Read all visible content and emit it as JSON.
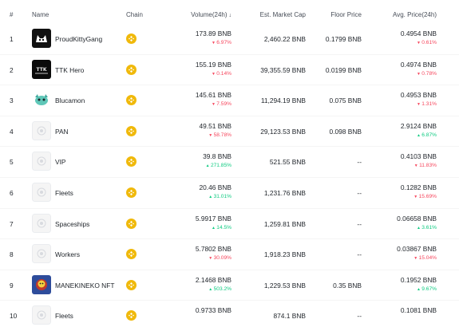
{
  "columns": {
    "rank": "#",
    "name": "Name",
    "chain": "Chain",
    "volume": "Volume(24h)",
    "market_cap": "Est. Market Cap",
    "floor": "Floor Price",
    "avg": "Avg. Price(24h)"
  },
  "sort_icon": "arrow-down-icon",
  "colors": {
    "up": "#0ecb81",
    "down": "#f6465d",
    "chain": "#f0b90b"
  },
  "rows": [
    {
      "rank": "1",
      "name": "ProudKittyGang",
      "logo": "kitty-logo-icon",
      "volume": "173.89 BNB",
      "volume_change": "6.97%",
      "volume_dir": "down",
      "market_cap": "2,460.22 BNB",
      "floor": "0.1799 BNB",
      "avg": "0.4954 BNB",
      "avg_change": "0.61%",
      "avg_dir": "down"
    },
    {
      "rank": "2",
      "name": "TTK Hero",
      "logo": "ttk-logo-icon",
      "volume": "155.19 BNB",
      "volume_change": "0.14%",
      "volume_dir": "down",
      "market_cap": "39,355.59 BNB",
      "floor": "0.0199 BNB",
      "avg": "0.4974 BNB",
      "avg_change": "0.78%",
      "avg_dir": "down"
    },
    {
      "rank": "3",
      "name": "Blucamon",
      "logo": "blucamon-logo-icon",
      "volume": "145.61 BNB",
      "volume_change": "7.59%",
      "volume_dir": "down",
      "market_cap": "11,294.19 BNB",
      "floor": "0.075 BNB",
      "avg": "0.4953 BNB",
      "avg_change": "1.31%",
      "avg_dir": "down"
    },
    {
      "rank": "4",
      "name": "PAN",
      "logo": "placeholder-logo-icon",
      "volume": "49.51 BNB",
      "volume_change": "58.78%",
      "volume_dir": "down",
      "market_cap": "29,123.53 BNB",
      "floor": "0.098 BNB",
      "avg": "2.9124 BNB",
      "avg_change": "6.87%",
      "avg_dir": "up"
    },
    {
      "rank": "5",
      "name": "VIP",
      "logo": "placeholder-logo-icon",
      "volume": "39.8 BNB",
      "volume_change": "271.85%",
      "volume_dir": "up",
      "market_cap": "521.55 BNB",
      "floor": "--",
      "avg": "0.4103 BNB",
      "avg_change": "11.83%",
      "avg_dir": "down"
    },
    {
      "rank": "6",
      "name": "Fleets",
      "logo": "placeholder-logo-icon",
      "volume": "20.46 BNB",
      "volume_change": "31.01%",
      "volume_dir": "up",
      "market_cap": "1,231.76 BNB",
      "floor": "--",
      "avg": "0.1282 BNB",
      "avg_change": "15.69%",
      "avg_dir": "down"
    },
    {
      "rank": "7",
      "name": "Spaceships",
      "logo": "placeholder-logo-icon",
      "volume": "5.9917 BNB",
      "volume_change": "14.5%",
      "volume_dir": "up",
      "market_cap": "1,259.81 BNB",
      "floor": "--",
      "avg": "0.06658 BNB",
      "avg_change": "3.61%",
      "avg_dir": "up"
    },
    {
      "rank": "8",
      "name": "Workers",
      "logo": "placeholder-logo-icon",
      "volume": "5.7802 BNB",
      "volume_change": "30.09%",
      "volume_dir": "down",
      "market_cap": "1,918.23 BNB",
      "floor": "--",
      "avg": "0.03867 BNB",
      "avg_change": "15.04%",
      "avg_dir": "down"
    },
    {
      "rank": "9",
      "name": "MANEKINEKO NFT",
      "logo": "manekineko-logo-icon",
      "volume": "2.1468 BNB",
      "volume_change": "503.2%",
      "volume_dir": "up",
      "market_cap": "1,229.53 BNB",
      "floor": "0.35 BNB",
      "avg": "0.1952 BNB",
      "avg_change": "9.67%",
      "avg_dir": "up"
    },
    {
      "rank": "10",
      "name": "Fleets",
      "logo": "placeholder-logo-icon",
      "volume": "0.9733 BNB",
      "volume_change": "",
      "volume_dir": "",
      "market_cap": "874.1 BNB",
      "floor": "--",
      "avg": "0.1081 BNB",
      "avg_change": "",
      "avg_dir": ""
    }
  ]
}
